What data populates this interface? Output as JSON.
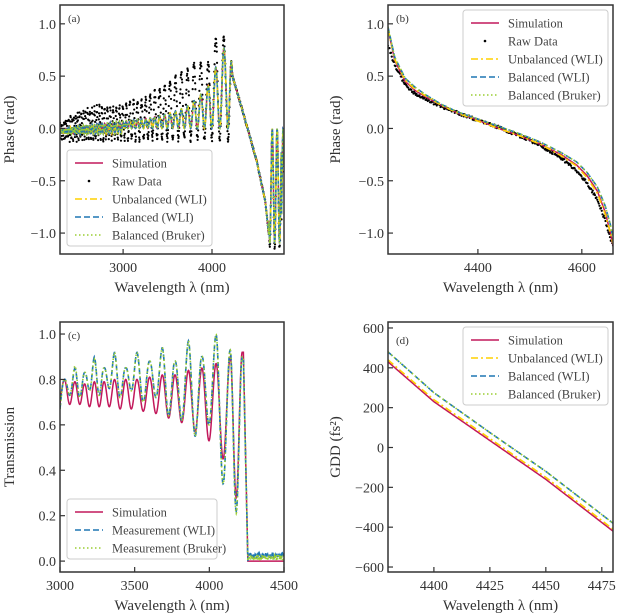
{
  "colors": {
    "simulation": "#c2185b",
    "raw": "#000000",
    "unbalanced": "#ffd000",
    "balanced_wli": "#1f77b4",
    "balanced_bruker": "#9acd32"
  },
  "chart_data": [
    {
      "id": "a",
      "type": "line",
      "panel_label": "(a)",
      "xlabel": "Wavelength λ (nm)",
      "ylabel": "Phase (rad)",
      "xlim": [
        2290,
        4810
      ],
      "ylim": [
        -1.2,
        1.18
      ],
      "xticks": [
        3000,
        4000
      ],
      "xtick_labels": [
        "3000",
        "4000"
      ],
      "yticks": [
        -1.0,
        -0.5,
        0.0,
        0.5,
        1.0
      ],
      "ytick_labels": [
        "−1.0",
        "−0.5",
        "0.0",
        "0.5",
        "1.0"
      ],
      "legend_position": "lower-left",
      "legend": [
        "Simulation",
        "Raw Data",
        "Unbalanced (WLI)",
        "Balanced (WLI)",
        "Balanced (Bruker)"
      ],
      "x": [
        2300,
        2500,
        2700,
        2900,
        3100,
        3300,
        3500,
        3700,
        3850,
        3950,
        4050,
        4150,
        4200,
        4230,
        4300,
        4400,
        4500,
        4600,
        4650,
        4700,
        4750,
        4800
      ],
      "series": [
        {
          "name": "Simulation",
          "style": "solid",
          "values": [
            0.0,
            0.02,
            0.04,
            0.06,
            0.08,
            0.1,
            0.14,
            0.2,
            0.3,
            0.4,
            0.6,
            0.8,
            1.1,
            0.5,
            0.3,
            0.0,
            -0.3,
            -0.7,
            -1.1,
            -0.1,
            -0.9,
            -0.1
          ]
        },
        {
          "name": "Raw Data",
          "style": "dots",
          "values": [
            0.05,
            0.15,
            0.2,
            0.2,
            0.25,
            0.3,
            0.45,
            0.55,
            0.65,
            0.6,
            0.88,
            0.85,
            1.1,
            0.5,
            0.3,
            0.0,
            -0.3,
            -0.75,
            -1.1,
            -0.15,
            -0.95,
            0.1
          ]
        },
        {
          "name": "Unbalanced (WLI)",
          "style": "dashdot",
          "values": [
            0.0,
            0.02,
            0.04,
            0.06,
            0.08,
            0.1,
            0.14,
            0.2,
            0.3,
            0.4,
            0.6,
            0.8,
            1.1,
            0.5,
            0.3,
            0.0,
            -0.3,
            -0.7,
            -1.1,
            -0.1,
            -0.9,
            -0.1
          ]
        },
        {
          "name": "Balanced (WLI)",
          "style": "dashed",
          "values": [
            0.0,
            0.02,
            0.04,
            0.06,
            0.08,
            0.1,
            0.14,
            0.2,
            0.3,
            0.4,
            0.6,
            0.8,
            1.1,
            0.5,
            0.3,
            0.0,
            -0.3,
            -0.7,
            -1.1,
            -0.1,
            -0.9,
            -0.1
          ]
        },
        {
          "name": "Balanced (Bruker)",
          "style": "dotted",
          "values": [
            0.0,
            0.02,
            0.04,
            0.06,
            0.08,
            0.1,
            0.14,
            0.2,
            0.3,
            0.4,
            0.6,
            0.8,
            1.1,
            0.5,
            0.3,
            0.0,
            -0.3,
            -0.7,
            -1.1,
            -0.1,
            -0.9,
            -0.1
          ]
        }
      ]
    },
    {
      "id": "b",
      "type": "line",
      "panel_label": "(b)",
      "xlabel": "Wavelength λ (nm)",
      "ylabel": "Phase (rad)",
      "xlim": [
        4227,
        4660
      ],
      "ylim": [
        -1.2,
        1.18
      ],
      "xticks": [
        4400,
        4600
      ],
      "xtick_labels": [
        "4400",
        "4600"
      ],
      "yticks": [
        -1.0,
        -0.5,
        0.0,
        0.5,
        1.0
      ],
      "ytick_labels": [
        "−1.0",
        "−0.5",
        "0.0",
        "0.5",
        "1.0"
      ],
      "legend_position": "upper-right",
      "legend": [
        "Simulation",
        "Raw Data",
        "Unbalanced (WLI)",
        "Balanced (WLI)",
        "Balanced (Bruker)"
      ],
      "x": [
        4227,
        4240,
        4260,
        4280,
        4300,
        4330,
        4360,
        4400,
        4440,
        4480,
        4520,
        4560,
        4590,
        4610,
        4630,
        4645,
        4655,
        4660
      ],
      "series": [
        {
          "name": "Simulation",
          "style": "solid",
          "values": [
            0.95,
            0.65,
            0.45,
            0.36,
            0.3,
            0.22,
            0.15,
            0.08,
            0.0,
            -0.07,
            -0.15,
            -0.25,
            -0.35,
            -0.45,
            -0.6,
            -0.8,
            -1.0,
            -1.12
          ]
        },
        {
          "name": "Raw Data",
          "style": "dots",
          "values": [
            0.8,
            0.6,
            0.42,
            0.33,
            0.28,
            0.21,
            0.15,
            0.08,
            0.01,
            -0.07,
            -0.16,
            -0.28,
            -0.4,
            -0.52,
            -0.68,
            -0.88,
            -1.05,
            -1.12
          ]
        },
        {
          "name": "Unbalanced (WLI)",
          "style": "dashdot",
          "values": [
            0.95,
            0.66,
            0.46,
            0.37,
            0.31,
            0.22,
            0.15,
            0.07,
            0.0,
            -0.07,
            -0.15,
            -0.26,
            -0.36,
            -0.47,
            -0.62,
            -0.82,
            -1.0,
            -1.1
          ]
        },
        {
          "name": "Balanced (WLI)",
          "style": "dashed",
          "values": [
            0.97,
            0.68,
            0.48,
            0.39,
            0.32,
            0.23,
            0.16,
            0.09,
            0.02,
            -0.05,
            -0.13,
            -0.23,
            -0.32,
            -0.42,
            -0.56,
            -0.74,
            -0.92,
            -1.05
          ]
        },
        {
          "name": "Balanced (Bruker)",
          "style": "dotted",
          "values": [
            0.97,
            0.68,
            0.48,
            0.39,
            0.32,
            0.23,
            0.16,
            0.09,
            0.02,
            -0.05,
            -0.13,
            -0.23,
            -0.32,
            -0.42,
            -0.56,
            -0.74,
            -0.92,
            -1.05
          ]
        }
      ]
    },
    {
      "id": "c",
      "type": "line",
      "panel_label": "(c)",
      "xlabel": "Wavelength λ (nm)",
      "ylabel": "Transmission",
      "xlim": [
        3000,
        4500
      ],
      "ylim": [
        -0.048,
        1.053
      ],
      "xticks": [
        3000,
        3500,
        4000,
        4500
      ],
      "xtick_labels": [
        "3000",
        "3500",
        "4000",
        "4500"
      ],
      "yticks": [
        0.0,
        0.2,
        0.4,
        0.6,
        0.8,
        1.0
      ],
      "ytick_labels": [
        "0.0",
        "0.2",
        "0.4",
        "0.6",
        "0.8",
        "1.0"
      ],
      "legend_position": "lower-left",
      "legend": [
        "Simulation",
        "Measurement (WLI)",
        "Measurement (Bruker)"
      ],
      "peaks": [
        3030,
        3100,
        3165,
        3230,
        3295,
        3365,
        3440,
        3515,
        3600,
        3685,
        3770,
        3860,
        3950,
        4045,
        4140,
        4220
      ],
      "series": [
        {
          "name": "Simulation",
          "style": "solid",
          "peak_values": [
            0.8,
            0.79,
            0.78,
            0.79,
            0.79,
            0.8,
            0.8,
            0.8,
            0.81,
            0.82,
            0.82,
            0.84,
            0.85,
            0.87,
            0.9,
            0.92
          ],
          "trough_values": [
            0.69,
            0.69,
            0.69,
            0.68,
            0.68,
            0.68,
            0.67,
            0.67,
            0.66,
            0.65,
            0.63,
            0.61,
            0.57,
            0.53,
            0.45,
            0.28
          ],
          "tail": 0.0
        },
        {
          "name": "Measurement (WLI)",
          "style": "dashed",
          "peak_values": [
            0.8,
            0.85,
            0.83,
            0.9,
            0.85,
            0.92,
            0.85,
            0.92,
            0.88,
            0.94,
            0.88,
            0.97,
            0.9,
            1.0,
            0.93,
            0.9
          ],
          "trough_values": [
            0.67,
            0.73,
            0.72,
            0.75,
            0.73,
            0.76,
            0.72,
            0.75,
            0.7,
            0.72,
            0.64,
            0.62,
            0.55,
            0.6,
            0.34,
            0.22
          ],
          "tail": 0.02
        },
        {
          "name": "Measurement (Bruker)",
          "style": "dotted",
          "peak_values": [
            0.8,
            0.86,
            0.83,
            0.89,
            0.85,
            0.92,
            0.85,
            0.92,
            0.88,
            0.94,
            0.88,
            0.97,
            0.9,
            1.0,
            0.93,
            0.9
          ],
          "trough_values": [
            0.67,
            0.73,
            0.72,
            0.75,
            0.73,
            0.76,
            0.72,
            0.75,
            0.7,
            0.72,
            0.64,
            0.62,
            0.55,
            0.6,
            0.34,
            0.21
          ],
          "tail": 0.01
        }
      ]
    },
    {
      "id": "d",
      "type": "line",
      "panel_label": "(d)",
      "xlabel": "Wavelength λ (nm)",
      "ylabel": "GDD (fs²)",
      "xlim": [
        4379.5,
        4480
      ],
      "ylim": [
        -625,
        630
      ],
      "xticks": [
        4400,
        4425,
        4450,
        4475
      ],
      "xtick_labels": [
        "4400",
        "4425",
        "4450",
        "4475"
      ],
      "yticks": [
        -600,
        -400,
        -200,
        0,
        200,
        400,
        600
      ],
      "ytick_labels": [
        "−600",
        "−400",
        "−200",
        "0",
        "200",
        "400",
        "600"
      ],
      "legend_position": "upper-right",
      "legend": [
        "Simulation",
        "Unbalanced (WLI)",
        "Balanced (WLI)",
        "Balanced (Bruker)"
      ],
      "x": [
        4379.5,
        4400,
        4425,
        4450,
        4480
      ],
      "series": [
        {
          "name": "Simulation",
          "style": "solid",
          "values": [
            430,
            230,
            35,
            -160,
            -420
          ]
        },
        {
          "name": "Unbalanced (WLI)",
          "style": "dashdot",
          "values": [
            440,
            240,
            45,
            -150,
            -410
          ]
        },
        {
          "name": "Balanced (WLI)",
          "style": "dashed",
          "values": [
            480,
            275,
            75,
            -120,
            -380
          ]
        },
        {
          "name": "Balanced (Bruker)",
          "style": "dotted",
          "values": [
            480,
            275,
            75,
            -120,
            -380
          ]
        }
      ]
    }
  ]
}
